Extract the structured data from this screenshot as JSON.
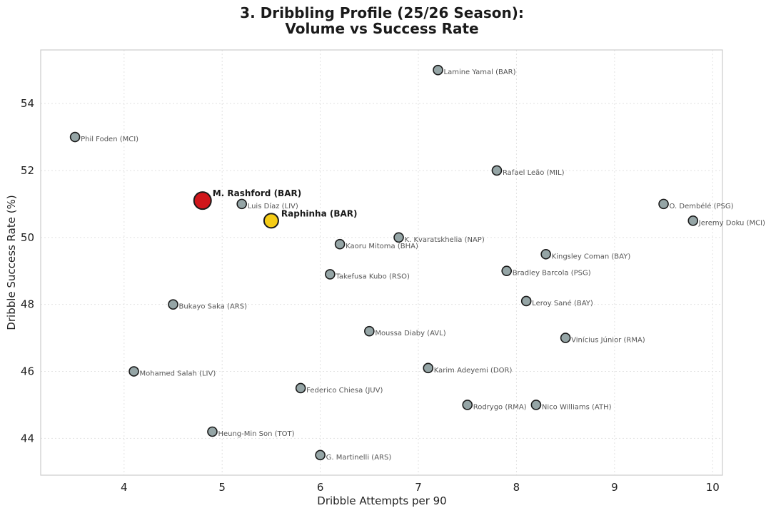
{
  "chart_data": {
    "type": "scatter",
    "title_lines": [
      "3. Dribbling Profile (25/26 Season):",
      "Volume vs Success Rate"
    ],
    "xlabel": "Dribble Attempts per 90",
    "ylabel": "Dribble Success Rate (%)",
    "xlim": [
      3.15,
      10.1
    ],
    "ylim": [
      42.9,
      55.6
    ],
    "xticks": [
      4,
      5,
      6,
      7,
      8,
      9,
      10
    ],
    "yticks": [
      44,
      46,
      48,
      50,
      52,
      54
    ],
    "grid": true,
    "colors": {
      "default_fill": "#95a5a6",
      "rashford_fill": "#d0161b",
      "raphinha_fill": "#f5cc16",
      "edge": "#1a1a1a"
    },
    "points": [
      {
        "label": "Lamine Yamal (BAR)",
        "x": 7.2,
        "y": 55.0
      },
      {
        "label": "Phil Foden (MCI)",
        "x": 3.5,
        "y": 53.0
      },
      {
        "label": "Rafael Leão (MIL)",
        "x": 7.8,
        "y": 52.0
      },
      {
        "label": "O. Dembélé (PSG)",
        "x": 9.5,
        "y": 51.0
      },
      {
        "label": "Luis Díaz (LIV)",
        "x": 5.2,
        "y": 51.0
      },
      {
        "label": "Jeremy Doku (MCI)",
        "x": 9.8,
        "y": 50.5
      },
      {
        "label": "K. Kvaratskhelia (NAP)",
        "x": 6.8,
        "y": 50.0
      },
      {
        "label": "Kaoru Mitoma (BHA)",
        "x": 6.2,
        "y": 49.8
      },
      {
        "label": "Kingsley Coman (BAY)",
        "x": 8.3,
        "y": 49.5
      },
      {
        "label": "Bradley Barcola (PSG)",
        "x": 7.9,
        "y": 49.0
      },
      {
        "label": "Takefusa Kubo (RSO)",
        "x": 6.1,
        "y": 48.9
      },
      {
        "label": "Leroy Sané (BAY)",
        "x": 8.1,
        "y": 48.1
      },
      {
        "label": "Bukayo Saka (ARS)",
        "x": 4.5,
        "y": 48.0
      },
      {
        "label": "Moussa Diaby (AVL)",
        "x": 6.5,
        "y": 47.2
      },
      {
        "label": "Vinícius Júnior (RMA)",
        "x": 8.5,
        "y": 47.0
      },
      {
        "label": "Karim Adeyemi (DOR)",
        "x": 7.1,
        "y": 46.1
      },
      {
        "label": "Mohamed Salah (LIV)",
        "x": 4.1,
        "y": 46.0
      },
      {
        "label": "Federico Chiesa (JUV)",
        "x": 5.8,
        "y": 45.5
      },
      {
        "label": "Rodrygo (RMA)",
        "x": 7.5,
        "y": 45.0
      },
      {
        "label": "Nico Williams (ATH)",
        "x": 8.2,
        "y": 45.0
      },
      {
        "label": "Heung-Min Son (TOT)",
        "x": 4.9,
        "y": 44.2
      },
      {
        "label": "G. Martinelli (ARS)",
        "x": 6.0,
        "y": 43.5
      }
    ],
    "highlights": [
      {
        "label": "M. Rashford (BAR)",
        "x": 4.8,
        "y": 51.1,
        "color_key": "rashford_fill",
        "size": "large"
      },
      {
        "label": "Raphinha (BAR)",
        "x": 5.5,
        "y": 50.5,
        "color_key": "raphinha_fill",
        "size": "medium"
      }
    ]
  }
}
